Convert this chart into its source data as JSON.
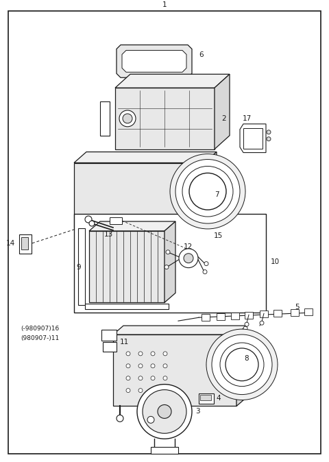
{
  "bg": "#ffffff",
  "lc": "#1a1a1a",
  "tc": "#1a1a1a",
  "fw": 4.8,
  "fh": 6.74,
  "dpi": 100,
  "fs": 7.5,
  "gray_fill": "#f0f0f0",
  "white": "#ffffff",
  "mid_gray": "#d8d8d8",
  "light_gray": "#e8e8e8"
}
